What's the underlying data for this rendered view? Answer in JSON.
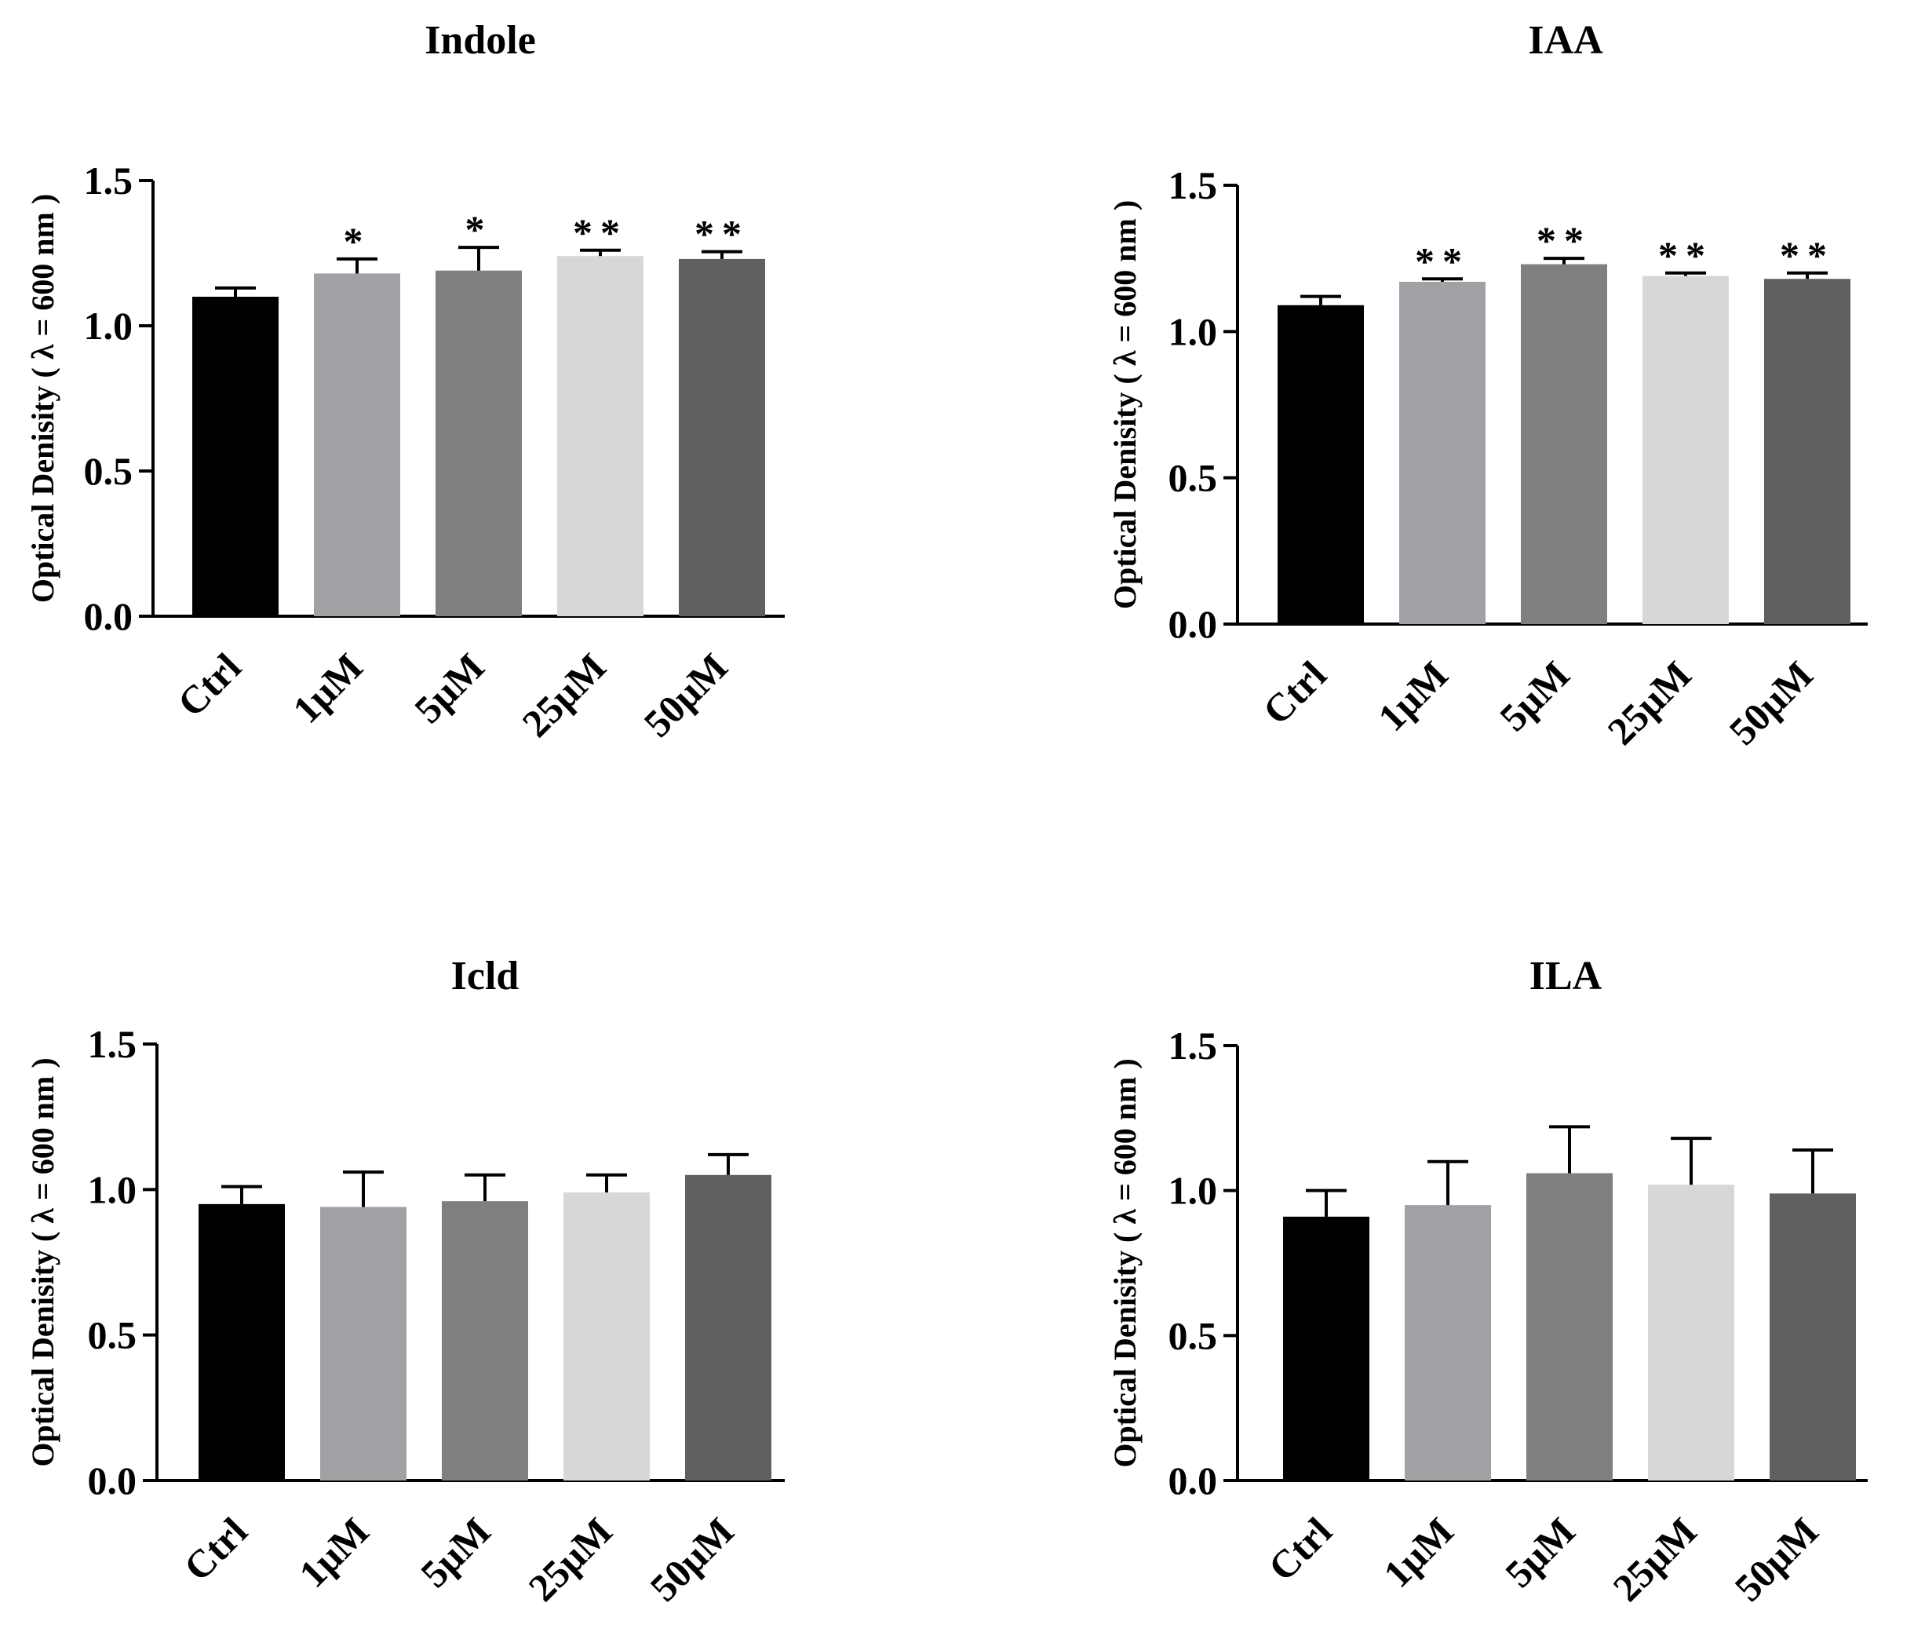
{
  "figure": {
    "bar_colors": [
      "#000000",
      "#a1a1a5",
      "#7f7f7f",
      "#d7d7d7",
      "#606060"
    ]
  },
  "chart_data": [
    {
      "id": "indole",
      "type": "bar",
      "title": "Indole",
      "xlabel": "",
      "ylabel": "Optical Denisity ( λ = 600 nm )",
      "ylim": [
        0,
        1.5
      ],
      "yticks": [
        "0.0",
        "0.5",
        "1.0",
        "1.5"
      ],
      "categories": [
        "Ctrl",
        "1μM",
        "5μM",
        "25μM",
        "50μM"
      ],
      "values": [
        1.1,
        1.18,
        1.19,
        1.24,
        1.23
      ],
      "errors": [
        0.03,
        0.05,
        0.08,
        0.02,
        0.025
      ],
      "significance": [
        "",
        "*",
        "*",
        "**",
        "**"
      ],
      "grid": false
    },
    {
      "id": "iaa",
      "type": "bar",
      "title": "IAA",
      "xlabel": "",
      "ylabel": "Optical Denisity ( λ = 600 nm )",
      "ylim": [
        0,
        1.5
      ],
      "yticks": [
        "0.0",
        "0.5",
        "1.0",
        "1.5"
      ],
      "categories": [
        "Ctrl",
        "1μM",
        "5μM",
        "25μM",
        "50μM"
      ],
      "values": [
        1.09,
        1.17,
        1.23,
        1.19,
        1.18
      ],
      "errors": [
        0.03,
        0.01,
        0.02,
        0.01,
        0.02
      ],
      "significance": [
        "",
        "**",
        "**",
        "**",
        "**"
      ],
      "grid": false
    },
    {
      "id": "icld",
      "type": "bar",
      "title": "Icld",
      "xlabel": "",
      "ylabel": "Optical Denisity ( λ = 600 nm )",
      "ylim": [
        0,
        1.5
      ],
      "yticks": [
        "0.0",
        "0.5",
        "1.0",
        "1.5"
      ],
      "categories": [
        "Ctrl",
        "1μM",
        "5μM",
        "25μM",
        "50μM"
      ],
      "values": [
        0.95,
        0.94,
        0.96,
        0.99,
        1.05
      ],
      "errors": [
        0.06,
        0.12,
        0.09,
        0.06,
        0.07
      ],
      "significance": [
        "",
        "",
        "",
        "",
        ""
      ],
      "grid": false
    },
    {
      "id": "ila",
      "type": "bar",
      "title": "ILA",
      "xlabel": "",
      "ylabel": "Optical Denisity ( λ = 600 nm )",
      "ylim": [
        0,
        1.5
      ],
      "yticks": [
        "0.0",
        "0.5",
        "1.0",
        "1.5"
      ],
      "categories": [
        "Ctrl",
        "1μM",
        "5μM",
        "25μM",
        "50μM"
      ],
      "values": [
        0.91,
        0.95,
        1.06,
        1.02,
        0.99
      ],
      "errors": [
        0.09,
        0.15,
        0.16,
        0.16,
        0.15
      ],
      "significance": [
        "",
        "",
        "",
        "",
        ""
      ],
      "grid": false
    }
  ]
}
